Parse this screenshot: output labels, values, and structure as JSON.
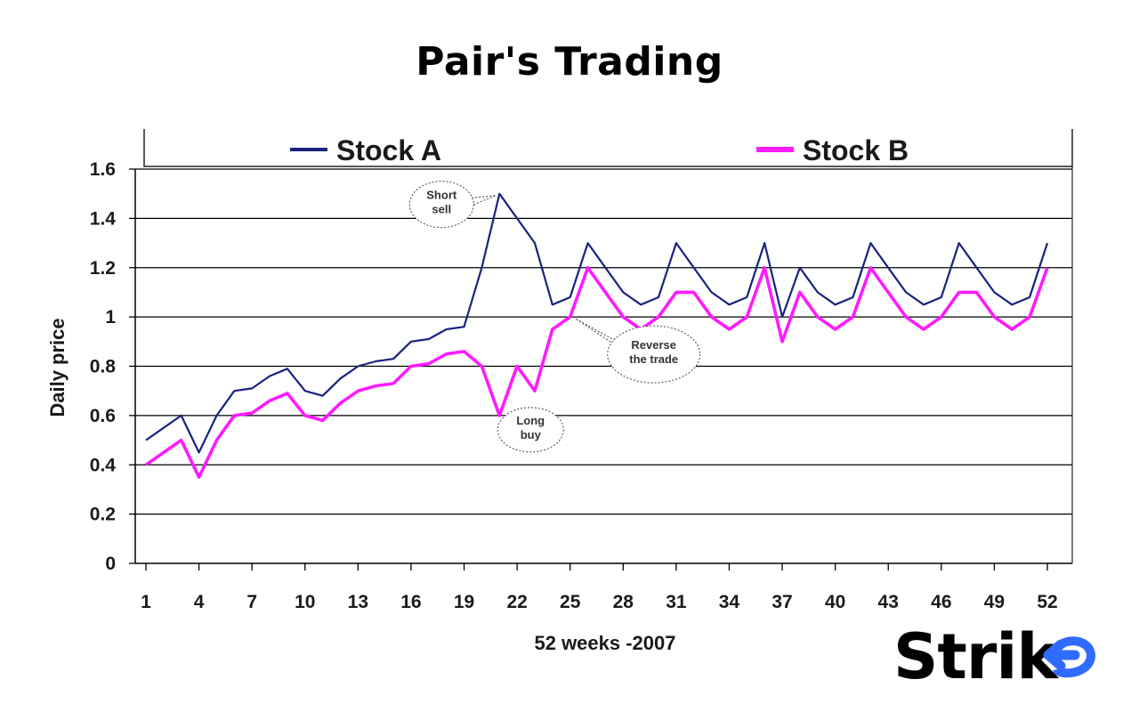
{
  "title": "Pair's Trading",
  "logo_text": "Strike",
  "colors": {
    "stock_a": "#1a237e",
    "stock_b": "#ff1aff",
    "logo_accent": "#2f6bff",
    "grid": "#000000"
  },
  "chart_data": {
    "type": "line",
    "xlabel": "52 weeks -2007",
    "ylabel": "Daily price",
    "xlim": [
      1,
      52
    ],
    "ylim": [
      0,
      1.6
    ],
    "x_ticks": [
      1,
      4,
      7,
      10,
      13,
      16,
      19,
      22,
      25,
      28,
      31,
      34,
      37,
      40,
      43,
      46,
      49,
      52
    ],
    "y_ticks": [
      "0",
      "0.2",
      "0.4",
      "0.6",
      "0.8",
      "1",
      "1.2",
      "1.4",
      "1.6"
    ],
    "y_tick_values": [
      0,
      0.2,
      0.4,
      0.6,
      0.8,
      1.0,
      1.2,
      1.4,
      1.6
    ],
    "grid": true,
    "legend_position": "top",
    "series": [
      {
        "name": "Stock A",
        "values": [
          0.5,
          0.55,
          0.6,
          0.45,
          0.6,
          0.7,
          0.71,
          0.76,
          0.79,
          0.7,
          0.68,
          0.75,
          0.8,
          0.82,
          0.83,
          0.9,
          0.91,
          0.95,
          0.96,
          1.2,
          1.5,
          1.4,
          1.3,
          1.05,
          1.08,
          1.3,
          1.2,
          1.1,
          1.05,
          1.08,
          1.3,
          1.2,
          1.1,
          1.05,
          1.08,
          1.3,
          1.0,
          1.2,
          1.1,
          1.05,
          1.08,
          1.3,
          1.2,
          1.1,
          1.05,
          1.08,
          1.3,
          1.2,
          1.1,
          1.05,
          1.08,
          1.3
        ]
      },
      {
        "name": "Stock B",
        "values": [
          0.4,
          0.45,
          0.5,
          0.35,
          0.5,
          0.6,
          0.61,
          0.66,
          0.69,
          0.6,
          0.58,
          0.65,
          0.7,
          0.72,
          0.73,
          0.8,
          0.81,
          0.85,
          0.86,
          0.8,
          0.6,
          0.8,
          0.7,
          0.95,
          1.0,
          1.2,
          1.1,
          1.0,
          0.95,
          1.0,
          1.1,
          1.1,
          1.0,
          0.95,
          1.0,
          1.2,
          0.9,
          1.1,
          1.0,
          0.95,
          1.0,
          1.2,
          1.1,
          1.0,
          0.95,
          1.0,
          1.1,
          1.1,
          1.0,
          0.95,
          1.0,
          1.2
        ]
      }
    ],
    "annotations": [
      {
        "lines": [
          "Short",
          "sell"
        ],
        "x": 21,
        "y": 1.5,
        "series": "Stock A"
      },
      {
        "lines": [
          "Reverse",
          "the trade"
        ],
        "x": 25,
        "y": 1.0,
        "series": "Stock B"
      },
      {
        "lines": [
          "Long",
          "buy"
        ],
        "x": 21,
        "y": 0.6,
        "series": "Stock B"
      }
    ]
  }
}
